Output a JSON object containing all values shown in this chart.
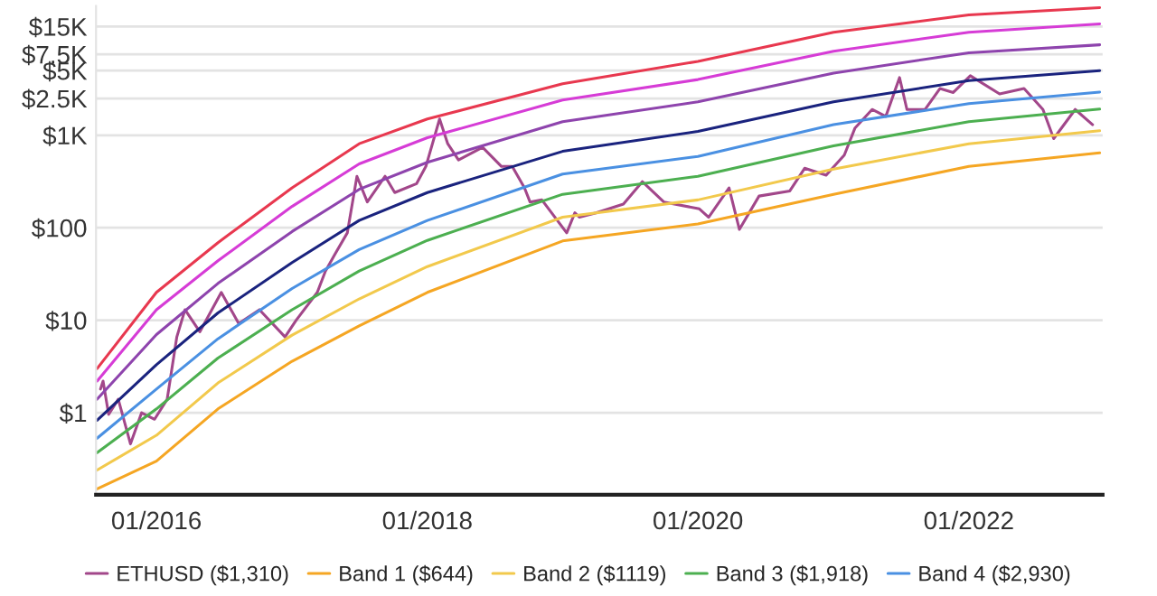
{
  "chart_data": {
    "type": "line",
    "log": true,
    "grid": "y",
    "legend": "bottom",
    "xlim": [
      "2015-07-22",
      "2022-12-28"
    ],
    "ylim": [
      0.13,
      25000
    ],
    "xticks": [
      {
        "value": "2016-01-01",
        "label": "01/2016"
      },
      {
        "value": "2018-01-01",
        "label": "01/2018"
      },
      {
        "value": "2020-01-01",
        "label": "01/2020"
      },
      {
        "value": "2022-01-01",
        "label": "01/2022"
      }
    ],
    "yticks": [
      {
        "value": 1,
        "label": "$1"
      },
      {
        "value": 10,
        "label": "$10"
      },
      {
        "value": 100,
        "label": "$100"
      },
      {
        "value": 1000,
        "label": "$1K"
      },
      {
        "value": 2500,
        "label": "$2.5K"
      },
      {
        "value": 5000,
        "label": "$5K"
      },
      {
        "value": 7500,
        "label": "$7.5K"
      },
      {
        "value": 15000,
        "label": "$15K"
      }
    ],
    "series": [
      {
        "name": "ETHUSD ($1,310)",
        "color": "#a2478a",
        "x": [
          "2015-08-03",
          "2015-08-10",
          "2015-08-25",
          "2015-09-20",
          "2015-10-23",
          "2015-11-22",
          "2015-12-27",
          "2016-01-30",
          "2016-02-25",
          "2016-03-18",
          "2016-04-27",
          "2016-06-24",
          "2016-08-10",
          "2016-10-05",
          "2016-12-13",
          "2017-01-12",
          "2017-03-10",
          "2017-04-01",
          "2017-04-27",
          "2017-05-30",
          "2017-06-25",
          "2017-07-23",
          "2017-09-09",
          "2017-10-05",
          "2017-12-03",
          "2017-12-28",
          "2018-02-03",
          "2018-02-25",
          "2018-03-26",
          "2018-05-30",
          "2018-07-20",
          "2018-08-18",
          "2018-09-20",
          "2018-10-05",
          "2018-11-06",
          "2019-01-12",
          "2019-02-03",
          "2019-02-15",
          "2019-04-01",
          "2019-06-14",
          "2019-08-04",
          "2019-10-01",
          "2020-01-05",
          "2020-01-30",
          "2020-03-25",
          "2020-04-22",
          "2020-06-14",
          "2020-09-05",
          "2020-10-15",
          "2020-12-12",
          "2021-01-30",
          "2021-02-28",
          "2021-04-15",
          "2021-05-22",
          "2021-06-28",
          "2021-07-18",
          "2021-09-05",
          "2021-10-15",
          "2021-11-20",
          "2022-01-05",
          "2022-03-25",
          "2022-05-30",
          "2022-07-20",
          "2022-08-18",
          "2022-10-15",
          "2022-12-01"
        ],
        "values": [
          1.8,
          2.2,
          0.96,
          1.4,
          0.46,
          1.0,
          0.85,
          1.4,
          6.6,
          13,
          7.5,
          20,
          9.2,
          13,
          6.6,
          10,
          20,
          34,
          52,
          88,
          360,
          190,
          360,
          240,
          300,
          460,
          1500,
          810,
          540,
          740,
          460,
          460,
          270,
          190,
          200,
          88,
          145,
          130,
          145,
          180,
          315,
          190,
          160,
          130,
          270,
          96,
          220,
          250,
          440,
          370,
          610,
          1200,
          1900,
          1600,
          4200,
          1900,
          1900,
          3200,
          2900,
          4400,
          2800,
          3200,
          1900,
          920,
          1900,
          1300
        ]
      },
      {
        "name": "Band 1 ($644)",
        "color": "#f5a623",
        "values": [
          0.15,
          0.3,
          1.1,
          3.6,
          8.7,
          20,
          72,
          110,
          230,
          460,
          644
        ]
      },
      {
        "name": "Band 2 ($1119)",
        "color": "#f2c94c",
        "values": [
          0.24,
          0.57,
          2.1,
          6.9,
          17,
          38,
          130,
          200,
          430,
          810,
          1119
        ]
      },
      {
        "name": "Band 3 ($1,918)",
        "color": "#4caf50",
        "values": [
          0.37,
          1.1,
          3.9,
          13,
          34,
          73,
          230,
          360,
          770,
          1400,
          1918
        ]
      },
      {
        "name": "Band 4 ($2,930)",
        "color": "#4a90e2",
        "values": [
          0.53,
          1.8,
          6.3,
          22,
          58,
          120,
          380,
          590,
          1300,
          2200,
          2930
        ]
      },
      {
        "color": "#1a237e",
        "values": [
          0.83,
          3.3,
          12,
          42,
          120,
          240,
          670,
          1100,
          2300,
          3900,
          5000
        ]
      },
      {
        "color": "#8e44ad",
        "values": [
          1.4,
          7.0,
          25,
          91,
          260,
          510,
          1400,
          2300,
          4700,
          7800,
          9500
        ]
      },
      {
        "color": "#d63cd6",
        "values": [
          2.2,
          13,
          44,
          170,
          490,
          940,
          2400,
          4000,
          8100,
          13000,
          16000
        ]
      },
      {
        "color": "#e8384f",
        "values": [
          3.0,
          20,
          69,
          270,
          810,
          1500,
          3600,
          6300,
          13000,
          20000,
          24000
        ]
      }
    ],
    "x": [
      "2015-07-25",
      "2016-01-01",
      "2016-06-15",
      "2017-01-01",
      "2017-07-01",
      "2018-01-01",
      "2019-01-01",
      "2020-01-01",
      "2021-01-01",
      "2022-01-01",
      "2022-12-20"
    ]
  }
}
